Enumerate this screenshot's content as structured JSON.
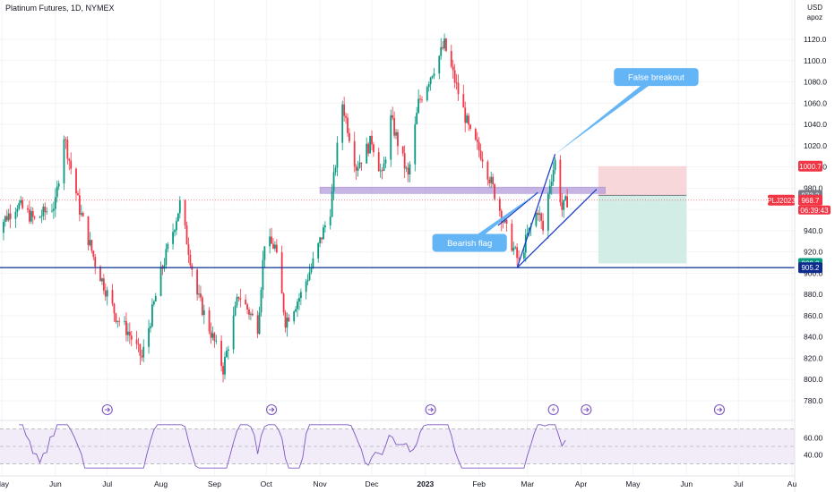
{
  "header": {
    "title": "Platinum Futures, 1D, NYMEX"
  },
  "price_axis": {
    "currency": "USD",
    "unit": "apoz"
  },
  "chart_data": {
    "type": "candlestick",
    "symbol": "PLJ2023",
    "title": "Platinum Futures, 1D, NYMEX",
    "ylim": [
      770,
      1135
    ],
    "y_ticks": [
      780,
      800,
      820,
      840,
      860,
      880,
      900,
      920,
      940,
      960,
      980,
      1000,
      1020,
      1040,
      1060,
      1080,
      1100,
      1120
    ],
    "y_tick_labels": [
      "780.0",
      "800.0",
      "820.0",
      "840.0",
      "860.0",
      "880.0",
      "900.0",
      "920.0",
      "940.0",
      "960.0",
      "980.0",
      "1000.0",
      "1020.0",
      "1040.0",
      "1060.0",
      "1080.0",
      "1100.0",
      "1120.0"
    ],
    "x_ticks": [
      {
        "label": "May",
        "date": "2022-05-01"
      },
      {
        "label": "Jun",
        "date": "2022-06-01"
      },
      {
        "label": "Jul",
        "date": "2022-07-01"
      },
      {
        "label": "Aug",
        "date": "2022-08-01"
      },
      {
        "label": "Sep",
        "date": "2022-09-01"
      },
      {
        "label": "Oct",
        "date": "2022-10-01"
      },
      {
        "label": "Nov",
        "date": "2022-11-01"
      },
      {
        "label": "Dec",
        "date": "2022-12-01"
      },
      {
        "label": "2023",
        "date": "2023-01-01"
      },
      {
        "label": "Feb",
        "date": "2023-02-01"
      },
      {
        "label": "Mar",
        "date": "2023-03-01"
      },
      {
        "label": "Apr",
        "date": "2023-04-01"
      },
      {
        "label": "May",
        "date": "2023-05-01"
      },
      {
        "label": "Jun",
        "date": "2023-06-01"
      },
      {
        "label": "Jul",
        "date": "2023-07-01"
      },
      {
        "label": "Au",
        "date": "2023-08-01"
      }
    ],
    "price_path": [
      {
        "date": "2022-04-27",
        "price": 940
      },
      {
        "date": "2022-05-10",
        "price": 965
      },
      {
        "date": "2022-05-20",
        "price": 950
      },
      {
        "date": "2022-06-01",
        "price": 965
      },
      {
        "date": "2022-06-06",
        "price": 1030
      },
      {
        "date": "2022-06-15",
        "price": 960
      },
      {
        "date": "2022-06-24",
        "price": 910
      },
      {
        "date": "2022-07-06",
        "price": 860
      },
      {
        "date": "2022-07-13",
        "price": 845
      },
      {
        "date": "2022-07-21",
        "price": 820
      },
      {
        "date": "2022-08-01",
        "price": 900
      },
      {
        "date": "2022-08-08",
        "price": 940
      },
      {
        "date": "2022-08-12",
        "price": 965
      },
      {
        "date": "2022-08-22",
        "price": 880
      },
      {
        "date": "2022-09-01",
        "price": 835
      },
      {
        "date": "2022-09-06",
        "price": 810
      },
      {
        "date": "2022-09-15",
        "price": 880
      },
      {
        "date": "2022-09-26",
        "price": 850
      },
      {
        "date": "2022-09-30",
        "price": 930
      },
      {
        "date": "2022-10-06",
        "price": 925
      },
      {
        "date": "2022-10-12",
        "price": 855
      },
      {
        "date": "2022-10-21",
        "price": 880
      },
      {
        "date": "2022-10-28",
        "price": 910
      },
      {
        "date": "2022-11-07",
        "price": 960
      },
      {
        "date": "2022-11-14",
        "price": 1060
      },
      {
        "date": "2022-11-22",
        "price": 1000
      },
      {
        "date": "2022-12-01",
        "price": 1025
      },
      {
        "date": "2022-12-07",
        "price": 990
      },
      {
        "date": "2022-12-12",
        "price": 1045
      },
      {
        "date": "2022-12-22",
        "price": 990
      },
      {
        "date": "2022-12-28",
        "price": 1060
      },
      {
        "date": "2023-01-05",
        "price": 1090
      },
      {
        "date": "2023-01-12",
        "price": 1115
      },
      {
        "date": "2023-01-20",
        "price": 1070
      },
      {
        "date": "2023-01-27",
        "price": 1030
      },
      {
        "date": "2023-02-03",
        "price": 1010
      },
      {
        "date": "2023-02-10",
        "price": 975
      },
      {
        "date": "2023-02-17",
        "price": 940
      },
      {
        "date": "2023-02-24",
        "price": 910
      },
      {
        "date": "2023-03-01",
        "price": 935
      },
      {
        "date": "2023-03-07",
        "price": 960
      },
      {
        "date": "2023-03-10",
        "price": 940
      },
      {
        "date": "2023-03-14",
        "price": 985
      },
      {
        "date": "2023-03-17",
        "price": 1005
      },
      {
        "date": "2023-03-21",
        "price": 960
      },
      {
        "date": "2023-03-24",
        "price": 968.7
      }
    ],
    "current_price": 968.7,
    "price_labels": [
      {
        "id": "stop",
        "text": "1000.7",
        "value": 1000.7,
        "color": "#f23645"
      },
      {
        "id": "entry",
        "text": "973.2",
        "value": 973.2,
        "color": "#787b86"
      },
      {
        "id": "last",
        "text": "968.7",
        "value": 968.7,
        "color": "#f23645"
      },
      {
        "id": "tp",
        "text": "909.2",
        "value": 909.2,
        "color": "#089981"
      },
      {
        "id": "support",
        "text": "905.2",
        "value": 905.2,
        "color": "#0d2a8c"
      }
    ],
    "symbol_tag": {
      "text": "PLJ2023",
      "countdown": "06:39:43",
      "color": "#f23645"
    },
    "annotations": {
      "support_line": {
        "value": 905.2,
        "color": "#1e3fa0"
      },
      "resistance_zone": {
        "from_date": "2022-11-01",
        "to_date": "2023-04-15",
        "low": 975,
        "high": 981,
        "color": "#b39ddb"
      },
      "flag_channel": [
        {
          "from": {
            "date": "2023-02-23",
            "price": 905
          },
          "to": {
            "date": "2023-03-17",
            "price": 1012
          }
        },
        {
          "from": {
            "date": "2023-02-23",
            "price": 905
          },
          "to": {
            "date": "2023-04-10",
            "price": 979
          }
        }
      ],
      "flag_pole": {
        "from": {
          "date": "2023-02-12",
          "price": 945
        },
        "to": {
          "date": "2023-03-07",
          "price": 976
        }
      },
      "callouts": [
        {
          "text": "False breakout",
          "box_date": "2023-04-20",
          "box_price": 1093
        },
        {
          "text": "Bearish flag",
          "box_date": "2023-01-05",
          "box_price": 937
        }
      ],
      "position": {
        "start_date": "2023-04-11",
        "end_date": "2023-06-01",
        "stop": 1000.7,
        "entry": 973.2,
        "target": 909.2
      },
      "event_dates": [
        "2022-07-01",
        "2022-10-04",
        "2023-01-04",
        "2023-03-16",
        "2023-04-04",
        "2023-06-20"
      ],
      "event_flash": "2023-03-16"
    },
    "rsi": {
      "levels": [
        30,
        50,
        70
      ],
      "tick_labels": [
        "60.00",
        "40.00"
      ],
      "tick_values": [
        60,
        40
      ],
      "color": "#7e57c2"
    }
  }
}
